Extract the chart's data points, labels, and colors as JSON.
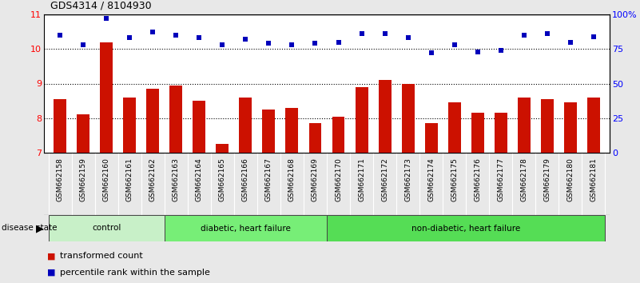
{
  "title": "GDS4314 / 8104930",
  "categories": [
    "GSM662158",
    "GSM662159",
    "GSM662160",
    "GSM662161",
    "GSM662162",
    "GSM662163",
    "GSM662164",
    "GSM662165",
    "GSM662166",
    "GSM662167",
    "GSM662168",
    "GSM662169",
    "GSM662170",
    "GSM662171",
    "GSM662172",
    "GSM662173",
    "GSM662174",
    "GSM662175",
    "GSM662176",
    "GSM662177",
    "GSM662178",
    "GSM662179",
    "GSM662180",
    "GSM662181"
  ],
  "red_values": [
    8.55,
    8.1,
    10.2,
    8.6,
    8.85,
    8.95,
    8.5,
    7.25,
    8.6,
    8.25,
    8.3,
    7.85,
    8.05,
    8.9,
    9.1,
    9.0,
    7.85,
    8.45,
    8.15,
    8.15,
    8.6,
    8.55,
    8.45,
    8.6
  ],
  "blue_values": [
    85,
    78,
    97,
    83,
    87,
    85,
    83,
    78,
    82,
    79,
    78,
    79,
    80,
    86,
    86,
    83,
    72,
    78,
    73,
    74,
    85,
    86,
    80,
    84
  ],
  "ylim_left": [
    7,
    11
  ],
  "ylim_right": [
    0,
    100
  ],
  "yticks_left": [
    7,
    8,
    9,
    10,
    11
  ],
  "yticks_right": [
    0,
    25,
    50,
    75,
    100
  ],
  "ytick_labels_right": [
    "0",
    "25",
    "50",
    "75",
    "100%"
  ],
  "group_ranges": [
    [
      0,
      4
    ],
    [
      5,
      11
    ],
    [
      12,
      23
    ]
  ],
  "group_labels": [
    "control",
    "diabetic, heart failure",
    "non-diabetic, heart failure"
  ],
  "group_colors": [
    "#c8f0c8",
    "#77ee77",
    "#55dd55"
  ],
  "bar_color": "#cc1100",
  "dot_color": "#0000bb",
  "fig_bg": "#e8e8e8",
  "tick_area_bg": "#bbbbbb",
  "plot_bg": "#ffffff",
  "disease_state_label": "disease state",
  "legend_items": [
    {
      "color": "#cc1100",
      "label": "transformed count"
    },
    {
      "color": "#0000bb",
      "label": "percentile rank within the sample"
    }
  ]
}
